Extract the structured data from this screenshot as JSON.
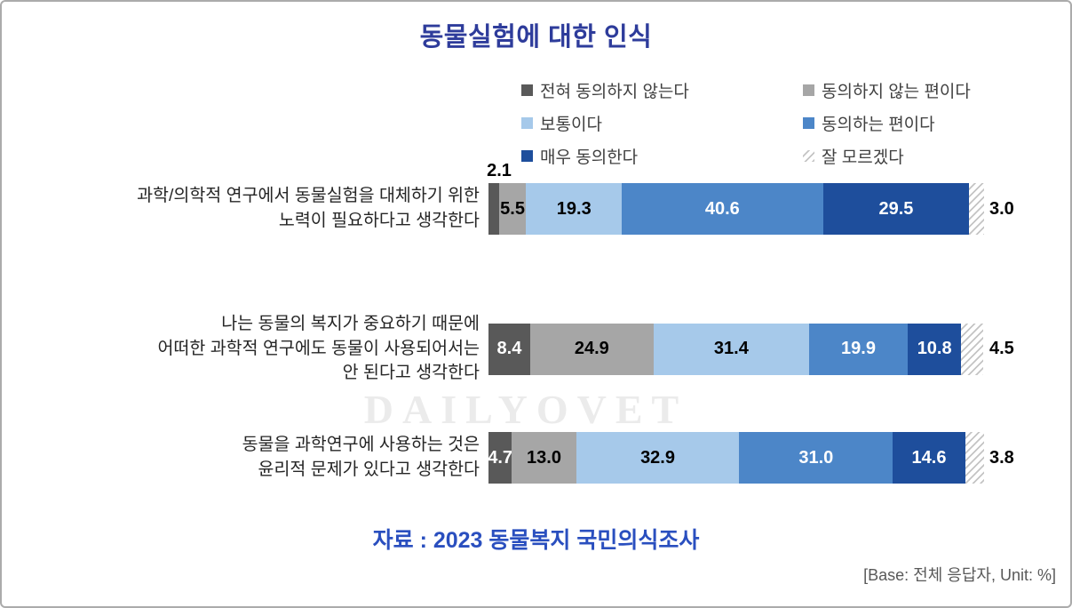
{
  "source": "자료 : 2023 동물복지 국민의식조사",
  "base_note": "[Base: 전체 응답자, Unit: %]",
  "watermark": "DAILYOVET",
  "legend": {
    "items": [
      {
        "key": "strongly-disagree",
        "color": "#595959",
        "text_color": "#ffffff",
        "pattern": "solid"
      },
      {
        "key": "disagree",
        "color": "#a6a6a6",
        "text_color": "#000000",
        "pattern": "solid"
      },
      {
        "key": "neutral",
        "color": "#a6c9ea",
        "text_color": "#000000",
        "pattern": "solid"
      },
      {
        "key": "agree",
        "color": "#4c86c8",
        "text_color": "#ffffff",
        "pattern": "solid"
      },
      {
        "key": "strongly-agree",
        "color": "#1e4e9c",
        "text_color": "#ffffff",
        "pattern": "solid"
      },
      {
        "key": "dont-know",
        "color": "#c4c4c4",
        "text_color": "#000000",
        "pattern": "hatch"
      }
    ]
  },
  "chart_data": {
    "type": "bar",
    "variant": "horizontal-stacked",
    "title": "동물실험에 대한 인식",
    "unit": "%",
    "xlim": [
      0,
      100
    ],
    "legend_position": "top",
    "grid": false,
    "categories": [
      "과학/의학적 연구에서 동물실험을 대체하기 위한\n노력이 필요하다고 생각한다",
      "나는 동물의 복지가 중요하기 때문에\n어떠한 과학적 연구에도 동물이 사용되어서는\n안 된다고 생각한다",
      "동물을 과학연구에 사용하는 것은\n윤리적 문제가 있다고 생각한다"
    ],
    "series": [
      {
        "name": "전혀 동의하지 않는다",
        "values": [
          2.1,
          8.4,
          4.7
        ]
      },
      {
        "name": "동의하지 않는 편이다",
        "values": [
          5.5,
          24.9,
          13.0
        ]
      },
      {
        "name": "보통이다",
        "values": [
          19.3,
          31.4,
          32.9
        ]
      },
      {
        "name": "동의하는 편이다",
        "values": [
          40.6,
          19.9,
          31.0
        ]
      },
      {
        "name": "매우 동의한다",
        "values": [
          29.5,
          10.8,
          14.6
        ]
      },
      {
        "name": "잘 모르겠다",
        "values": [
          3.0,
          4.5,
          3.8
        ]
      }
    ]
  }
}
